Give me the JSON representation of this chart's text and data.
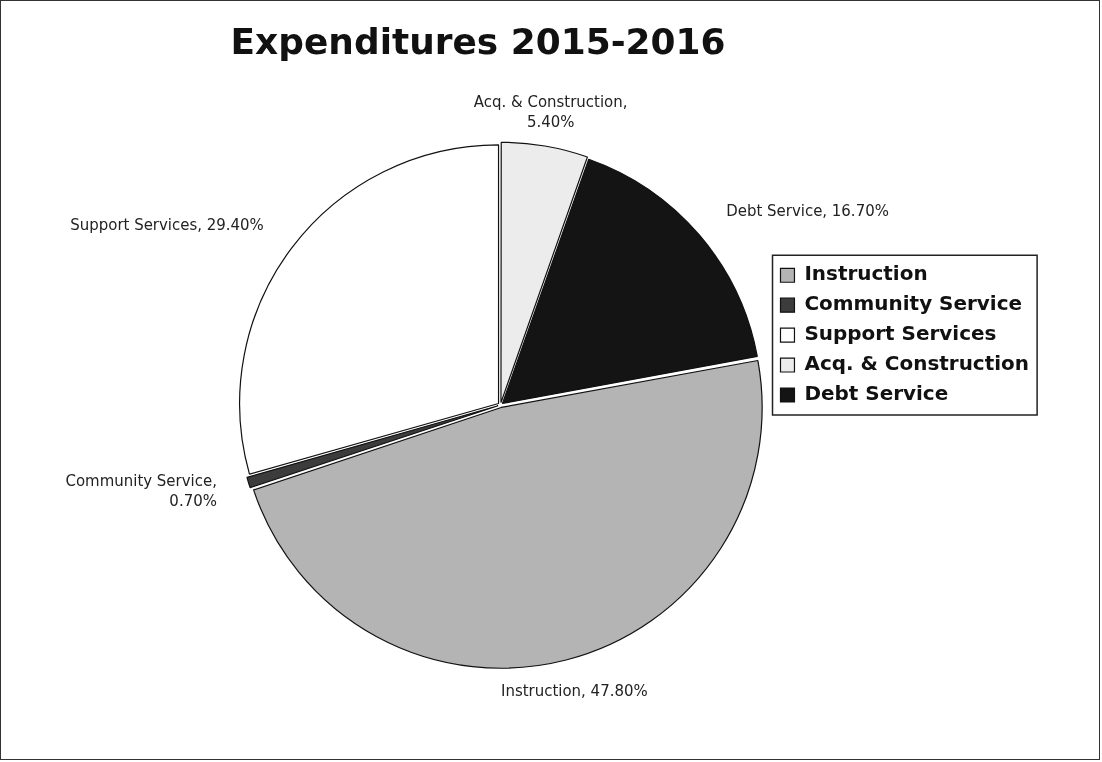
{
  "chart_data": {
    "type": "pie",
    "title": "Expenditures 2015-2016",
    "categories": [
      "Instruction",
      "Community Service",
      "Support Services",
      "Acq. & Construction",
      "Debt Service"
    ],
    "values": [
      47.8,
      0.7,
      29.4,
      5.4,
      16.7
    ],
    "colors": [
      "#b4b4b4",
      "#3c3c3c",
      "#ffffff",
      "#ececec",
      "#141414"
    ],
    "value_labels": [
      "Instruction, 47.80%",
      "Community Service, 0.70%",
      "Support Services, 29.40%",
      "Acq. & Construction, 5.40%",
      "Debt Service, 16.70%"
    ],
    "legend": "right"
  }
}
